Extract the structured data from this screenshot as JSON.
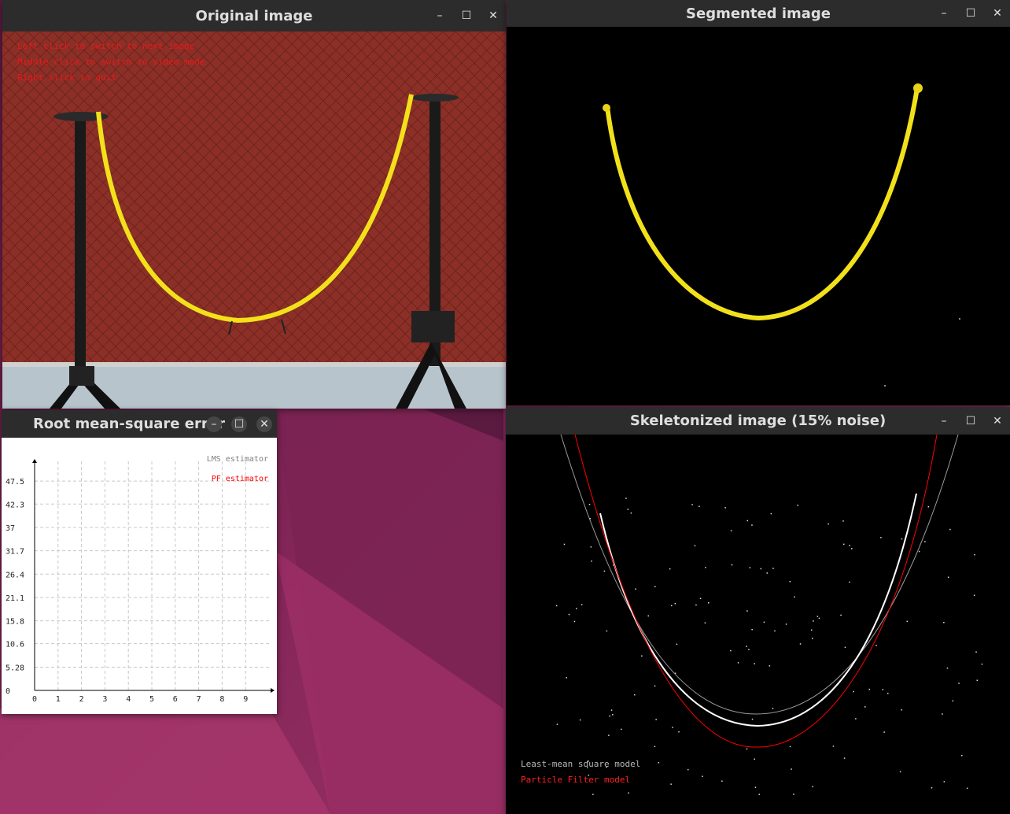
{
  "windows": {
    "original": {
      "title": "Original image",
      "instructions": [
        "Left click to switch to next image",
        "Middle click to switch to video mode",
        "Right click to quit"
      ]
    },
    "segmented": {
      "title": "Segmented image"
    },
    "skeleton": {
      "title": "Skeletonized image (15% noise)",
      "legend": {
        "lms": "Least-mean square model",
        "pf": "Particle Filter model"
      }
    },
    "rmse": {
      "title": "Root mean-square error",
      "legend": {
        "lms": "LMS estimator",
        "pf": "PF estimator"
      }
    }
  },
  "chart_data": {
    "type": "line",
    "title": "Root mean-square error",
    "xlabel": "",
    "ylabel": "",
    "x_ticks": [
      "0",
      "1",
      "2",
      "3",
      "4",
      "5",
      "6",
      "7",
      "8",
      "9"
    ],
    "y_ticks": [
      "0",
      "5.28",
      "10.6",
      "15.8",
      "21.1",
      "26.4",
      "31.7",
      "37",
      "42.3",
      "47.5"
    ],
    "xlim": [
      0,
      10
    ],
    "ylim": [
      0,
      52
    ],
    "grid": true,
    "legend_position": "top-right",
    "series": [
      {
        "name": "LMS estimator",
        "color": "#808080",
        "values": []
      },
      {
        "name": "PF estimator",
        "color": "#ff0000",
        "values": []
      }
    ]
  },
  "colors": {
    "window_title_bg": "#2c2c2c",
    "rope_yellow": "#f2e11a",
    "wall_red": "#8a2e26",
    "pf_red": "#ff0000",
    "lms_gray": "#9a9a9a"
  },
  "icons": [
    "minimize-icon",
    "maximize-icon",
    "close-icon"
  ]
}
